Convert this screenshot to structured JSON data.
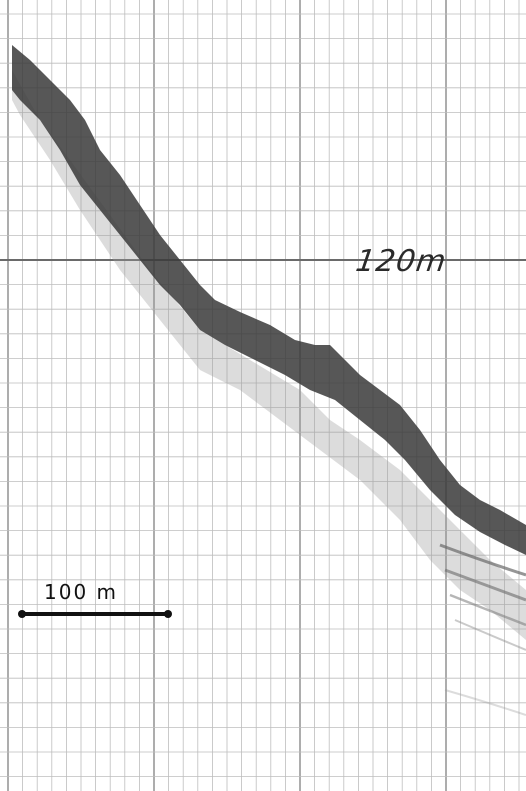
{
  "depth_annotation": "120m",
  "scale_bar": {
    "label": "100 m"
  },
  "colors": {
    "paper": "#ffffff",
    "grid_minor": "#bdbdbd",
    "grid_major": "#8a8a8a",
    "seabed_trace": "#3a3a3a",
    "ink": "#111111"
  }
}
